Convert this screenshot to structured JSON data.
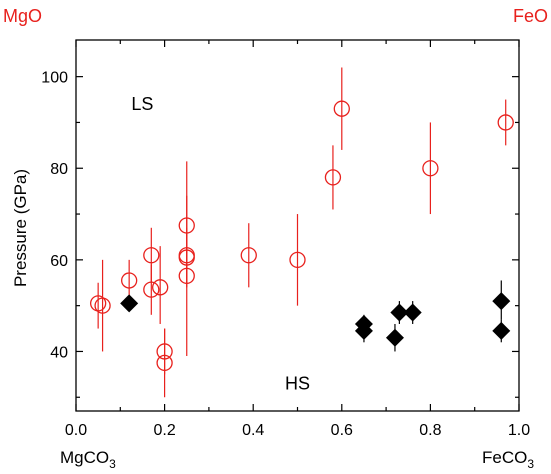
{
  "chart_data": {
    "type": "scatter",
    "xlabel": "",
    "ylabel": "Pressure (GPa)",
    "xlim": [
      0.0,
      1.0
    ],
    "ylim": [
      27,
      108
    ],
    "x_ticks": [
      "0.0",
      "0.2",
      "0.4",
      "0.6",
      "0.8",
      "1.0"
    ],
    "y_ticks": [
      "40",
      "60",
      "80",
      "100"
    ],
    "grid": false,
    "corner_labels": {
      "top_left": "MgO",
      "top_right": "FeO",
      "bottom_left": {
        "base": "MgCO",
        "sub": "3"
      },
      "bottom_right": {
        "base": "FeCO",
        "sub": "3"
      }
    },
    "annotations": [
      {
        "text": "LS",
        "x": 0.15,
        "y": 94
      },
      {
        "text": "HS",
        "x": 0.5,
        "y": 33
      }
    ],
    "colors": {
      "open_series": "#e8211d",
      "filled_series": "#000000"
    },
    "series": [
      {
        "marker": "open-circle",
        "points": [
          {
            "x": 0.05,
            "y": 50.5,
            "ylo": 45,
            "yhi": 55
          },
          {
            "x": 0.06,
            "y": 50,
            "ylo": 40,
            "yhi": 60
          },
          {
            "x": 0.12,
            "y": 55.5,
            "ylo": 50,
            "yhi": 60
          },
          {
            "x": 0.17,
            "y": 61,
            "ylo": 55,
            "yhi": 67
          },
          {
            "x": 0.17,
            "y": 53.5,
            "ylo": 48,
            "yhi": 59
          },
          {
            "x": 0.19,
            "y": 54,
            "ylo": 46,
            "yhi": 63
          },
          {
            "x": 0.2,
            "y": 40,
            "ylo": 35,
            "yhi": 45
          },
          {
            "x": 0.2,
            "y": 37.5,
            "ylo": 30,
            "yhi": 45
          },
          {
            "x": 0.25,
            "y": 67.5,
            "ylo": 54,
            "yhi": 81.5
          },
          {
            "x": 0.25,
            "y": 61,
            "ylo": 55,
            "yhi": 67
          },
          {
            "x": 0.25,
            "y": 60.5,
            "ylo": 55,
            "yhi": 66
          },
          {
            "x": 0.25,
            "y": 56.5,
            "ylo": 39,
            "yhi": 74
          },
          {
            "x": 0.39,
            "y": 61,
            "ylo": 54,
            "yhi": 68
          },
          {
            "x": 0.5,
            "y": 60,
            "ylo": 50,
            "yhi": 70
          },
          {
            "x": 0.58,
            "y": 78,
            "ylo": 71,
            "yhi": 85
          },
          {
            "x": 0.6,
            "y": 93,
            "ylo": 84,
            "yhi": 102
          },
          {
            "x": 0.8,
            "y": 80,
            "ylo": 70,
            "yhi": 90
          },
          {
            "x": 0.97,
            "y": 90,
            "ylo": 85,
            "yhi": 95
          }
        ]
      },
      {
        "marker": "filled-diamond",
        "points": [
          {
            "x": 0.12,
            "y": 50.5
          },
          {
            "x": 0.65,
            "y": 46,
            "ylo": 43,
            "yhi": 48
          },
          {
            "x": 0.65,
            "y": 44.5,
            "ylo": 42,
            "yhi": 47
          },
          {
            "x": 0.72,
            "y": 43,
            "ylo": 40,
            "yhi": 46
          },
          {
            "x": 0.73,
            "y": 48.5,
            "ylo": 46,
            "yhi": 51
          },
          {
            "x": 0.76,
            "y": 48.5,
            "ylo": 46,
            "yhi": 51
          },
          {
            "x": 0.96,
            "y": 51,
            "ylo": 47,
            "yhi": 55.5
          },
          {
            "x": 0.96,
            "y": 44.5,
            "ylo": 42,
            "yhi": 47
          }
        ]
      }
    ]
  }
}
